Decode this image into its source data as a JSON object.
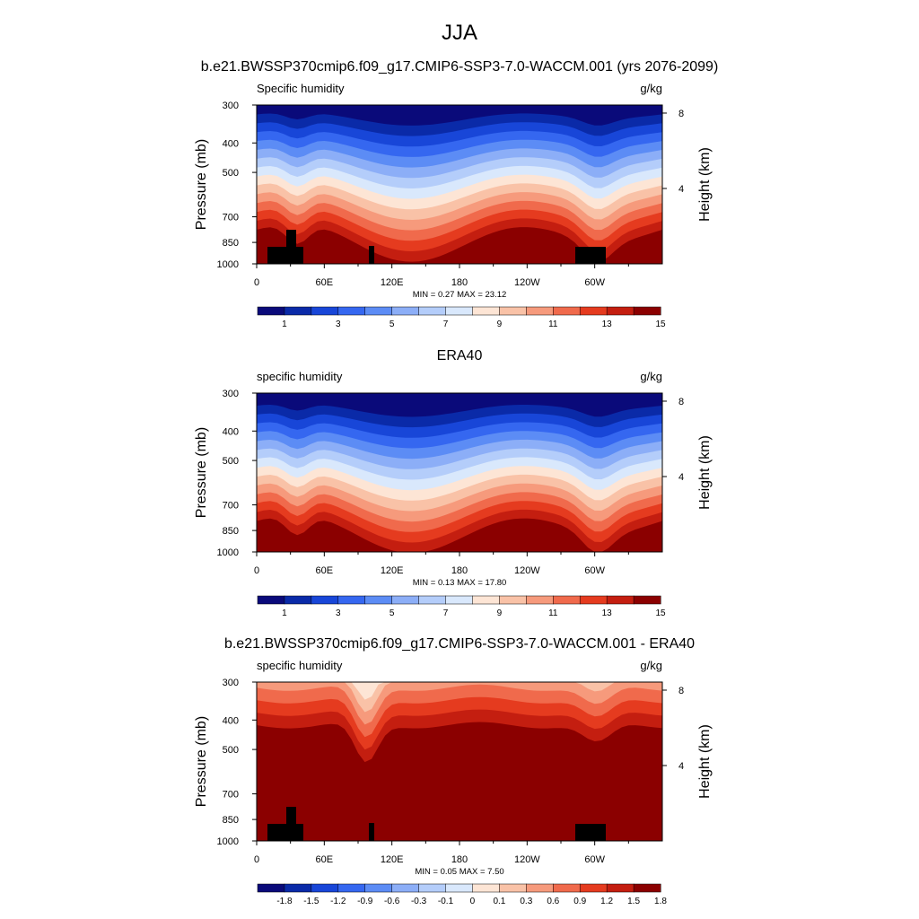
{
  "figure": {
    "title": "JJA",
    "panel1_header": "b.e21.BWSSP370cmip6.f09_g17.CMIP6-SSP3-7.0-WACCM.001 (yrs 2076-2099)",
    "panel2_header": "ERA40",
    "panel3_header": "b.e21.BWSSP370cmip6.f09_g17.CMIP6-SSP3-7.0-WACCM.001 - ERA40"
  },
  "palettes": {
    "sequential": [
      "#0a0a7a",
      "#0a2aa8",
      "#1846d8",
      "#3567f0",
      "#5c8cf5",
      "#8caef7",
      "#b4cdfa",
      "#d9e8fc",
      "#fde5d5",
      "#f9c2a7",
      "#f69a7c",
      "#f06a4c",
      "#e53b1f",
      "#c41e10",
      "#8b0000"
    ],
    "difference": [
      "#0a0a7a",
      "#0a2aa8",
      "#1846d8",
      "#3567f0",
      "#5c8cf5",
      "#8caef7",
      "#b4cdfa",
      "#d9e8fc",
      "#fde5d5",
      "#f9c2a7",
      "#f69a7c",
      "#f06a4c",
      "#e53b1f",
      "#c41e10",
      "#8b0000"
    ]
  },
  "chart_data": [
    {
      "type": "heatmap",
      "left_label": "Specific humidity",
      "units": "g/kg",
      "ylabel": "Pressure (mb)",
      "ylabel_right": "Height (km)",
      "x_ticks": [
        "0",
        "60E",
        "120E",
        "180",
        "120W",
        "60W"
      ],
      "y_ticks": [
        "300",
        "400",
        "500",
        "700",
        "850",
        "1000"
      ],
      "y_right_ticks": [
        "8",
        "4"
      ],
      "xlim": [
        0,
        360
      ],
      "ylim": [
        1000,
        300
      ],
      "stats": "MIN =   0.27  MAX =   23.12",
      "min": 0.27,
      "max": 23.12,
      "colorbar_labels": [
        "1",
        "3",
        "5",
        "7",
        "9",
        "11",
        "13",
        "15"
      ],
      "colorbar_levels": [
        1,
        2,
        3,
        4,
        5,
        6,
        7,
        8,
        9,
        10,
        11,
        12,
        13,
        14,
        15
      ],
      "palette": "sequential"
    },
    {
      "type": "heatmap",
      "left_label": "specific humidity",
      "units": "g/kg",
      "ylabel": "Pressure (mb)",
      "ylabel_right": "Height (km)",
      "x_ticks": [
        "0",
        "60E",
        "120E",
        "180",
        "120W",
        "60W"
      ],
      "y_ticks": [
        "300",
        "400",
        "500",
        "700",
        "850",
        "1000"
      ],
      "y_right_ticks": [
        "8",
        "4"
      ],
      "xlim": [
        0,
        360
      ],
      "ylim": [
        1000,
        300
      ],
      "stats": "MIN =   0.13  MAX =   17.80",
      "min": 0.13,
      "max": 17.8,
      "colorbar_labels": [
        "1",
        "3",
        "5",
        "7",
        "9",
        "11",
        "13",
        "15"
      ],
      "colorbar_levels": [
        1,
        2,
        3,
        4,
        5,
        6,
        7,
        8,
        9,
        10,
        11,
        12,
        13,
        14,
        15
      ],
      "palette": "sequential"
    },
    {
      "type": "heatmap",
      "left_label": "specific humidity",
      "units": "g/kg",
      "ylabel": "Pressure (mb)",
      "ylabel_right": "Height (km)",
      "x_ticks": [
        "0",
        "60E",
        "120E",
        "180",
        "120W",
        "60W"
      ],
      "y_ticks": [
        "300",
        "400",
        "500",
        "700",
        "850",
        "1000"
      ],
      "y_right_ticks": [
        "8",
        "4"
      ],
      "xlim": [
        0,
        360
      ],
      "ylim": [
        1000,
        300
      ],
      "stats": "MIN =   0.05  MAX =    7.50",
      "min": 0.05,
      "max": 7.5,
      "colorbar_labels": [
        "-1.8",
        "-1.5",
        "-1.2",
        "-0.9",
        "-0.6",
        "-0.3",
        "-0.1",
        "0",
        "0.1",
        "0.3",
        "0.6",
        "0.9",
        "1.2",
        "1.5",
        "1.8"
      ],
      "colorbar_levels": [
        -1.8,
        -1.5,
        -1.2,
        -0.9,
        -0.6,
        -0.3,
        -0.1,
        0,
        0.1,
        0.3,
        0.6,
        0.9,
        1.2,
        1.5,
        1.8
      ],
      "palette": "difference"
    }
  ]
}
